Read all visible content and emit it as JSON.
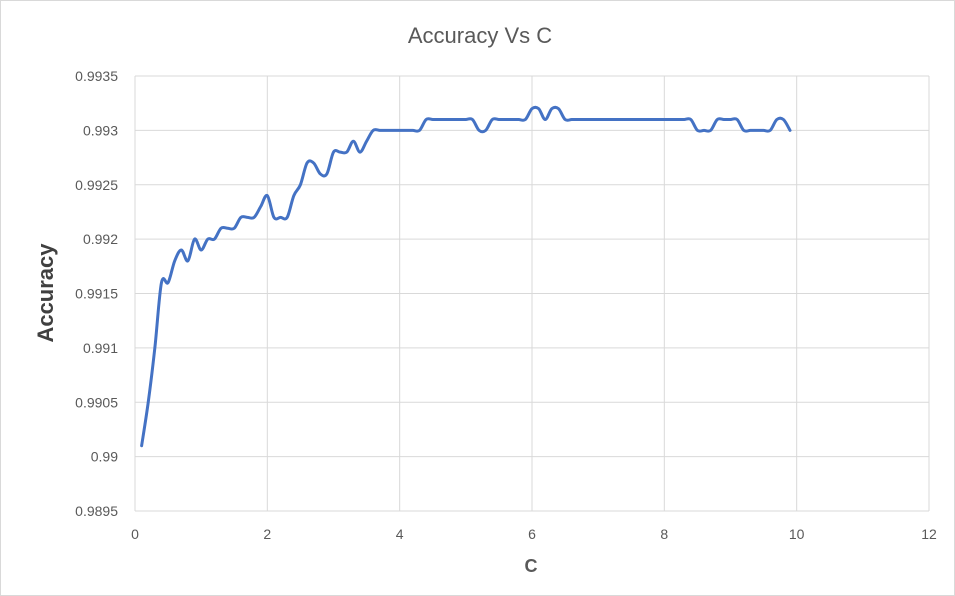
{
  "chart_data": {
    "type": "line",
    "title": "Accuracy Vs C",
    "xlabel": "C",
    "ylabel": "Accuracy",
    "xlim": [
      0,
      12
    ],
    "ylim": [
      0.9895,
      0.9935
    ],
    "x_ticks": [
      0,
      2,
      4,
      6,
      8,
      10,
      12
    ],
    "x_tick_labels": [
      "0",
      "2",
      "4",
      "6",
      "8",
      "10",
      "12"
    ],
    "y_ticks": [
      0.9895,
      0.99,
      0.9905,
      0.991,
      0.9915,
      0.992,
      0.9925,
      0.993,
      0.9935
    ],
    "y_tick_labels": [
      "0.9895",
      "0.99",
      "0.9905",
      "0.991",
      "0.9915",
      "0.992",
      "0.9925",
      "0.993",
      "0.9935"
    ],
    "grid": true,
    "legend": "none",
    "line_color": "#4472c4",
    "grid_color": "#d9d9d9",
    "series": [
      {
        "x": [
          0.1,
          0.2,
          0.3,
          0.4,
          0.5,
          0.6,
          0.7,
          0.8,
          0.9,
          1.0,
          1.1,
          1.2,
          1.3,
          1.4,
          1.5,
          1.6,
          1.7,
          1.8,
          1.9,
          2.0,
          2.1,
          2.2,
          2.3,
          2.4,
          2.5,
          2.6,
          2.7,
          2.8,
          2.9,
          3.0,
          3.1,
          3.2,
          3.3,
          3.4,
          3.5,
          3.6,
          3.7,
          3.8,
          3.9,
          4.0,
          4.1,
          4.2,
          4.3,
          4.4,
          4.5,
          4.6,
          4.7,
          4.8,
          4.9,
          5.0,
          5.1,
          5.2,
          5.3,
          5.4,
          5.5,
          5.6,
          5.7,
          5.8,
          5.9,
          6.0,
          6.1,
          6.2,
          6.3,
          6.4,
          6.5,
          6.6,
          6.7,
          6.8,
          6.9,
          7.0,
          7.1,
          7.2,
          7.3,
          7.4,
          7.5,
          7.6,
          7.7,
          7.8,
          7.9,
          8.0,
          8.1,
          8.2,
          8.3,
          8.4,
          8.5,
          8.6,
          8.7,
          8.8,
          8.9,
          9.0,
          9.1,
          9.2,
          9.3,
          9.4,
          9.5,
          9.6,
          9.7,
          9.8,
          9.9
        ],
        "values": [
          0.9901,
          0.9905,
          0.991,
          0.9916,
          0.9916,
          0.9918,
          0.9919,
          0.9918,
          0.992,
          0.9919,
          0.992,
          0.992,
          0.9921,
          0.9921,
          0.9921,
          0.9922,
          0.9922,
          0.9922,
          0.9923,
          0.9924,
          0.9922,
          0.9922,
          0.9922,
          0.9924,
          0.9925,
          0.9927,
          0.9927,
          0.9926,
          0.9926,
          0.9928,
          0.9928,
          0.9928,
          0.9929,
          0.9928,
          0.9929,
          0.993,
          0.993,
          0.993,
          0.993,
          0.993,
          0.993,
          0.993,
          0.993,
          0.9931,
          0.9931,
          0.9931,
          0.9931,
          0.9931,
          0.9931,
          0.9931,
          0.9931,
          0.993,
          0.993,
          0.9931,
          0.9931,
          0.9931,
          0.9931,
          0.9931,
          0.9931,
          0.9932,
          0.9932,
          0.9931,
          0.9932,
          0.9932,
          0.9931,
          0.9931,
          0.9931,
          0.9931,
          0.9931,
          0.9931,
          0.9931,
          0.9931,
          0.9931,
          0.9931,
          0.9931,
          0.9931,
          0.9931,
          0.9931,
          0.9931,
          0.9931,
          0.9931,
          0.9931,
          0.9931,
          0.9931,
          0.993,
          0.993,
          0.993,
          0.9931,
          0.9931,
          0.9931,
          0.9931,
          0.993,
          0.993,
          0.993,
          0.993,
          0.993,
          0.9931,
          0.9931,
          0.993
        ]
      }
    ]
  }
}
